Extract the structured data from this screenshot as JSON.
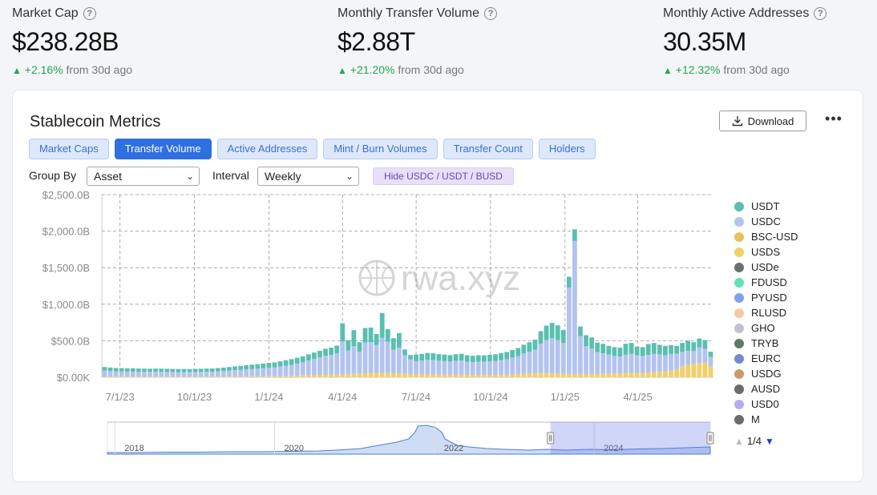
{
  "kpis": [
    {
      "title": "Market Cap",
      "value": "$238.28B",
      "change": "+2.16%",
      "suffix": "from 30d ago"
    },
    {
      "title": "Monthly Transfer Volume",
      "value": "$2.88T",
      "change": "+21.20%",
      "suffix": "from 30d ago"
    },
    {
      "title": "Monthly Active Addresses",
      "value": "30.35M",
      "change": "+12.32%",
      "suffix": "from 30d ago"
    }
  ],
  "card": {
    "title": "Stablecoin Metrics",
    "download_label": "Download",
    "more_label": "•••",
    "tabs": [
      "Market Caps",
      "Transfer Volume",
      "Active Addresses",
      "Mint / Burn Volumes",
      "Transfer Count",
      "Holders"
    ],
    "active_tab": "Transfer Volume",
    "group_by_label": "Group By",
    "group_by_value": "Asset",
    "interval_label": "Interval",
    "interval_value": "Weekly",
    "hide_button": "Hide USDC / USDT / BUSD",
    "pager": "1/4",
    "watermark": "rwa.xyz"
  },
  "navigator": {
    "year_labels": [
      "2018",
      "2020",
      "2022",
      "2024"
    ]
  },
  "chart_data": {
    "type": "bar",
    "stacked": true,
    "interval": "weekly",
    "ylabel": "",
    "xlabel": "",
    "ylim": [
      0,
      2500
    ],
    "yticks": [
      "$0.00K",
      "$500.0B",
      "$1,000.0B",
      "$1,500.0B",
      "$2,000.0B",
      "$2,500.0B"
    ],
    "xticks": [
      "7/1/23",
      "10/1/23",
      "1/1/24",
      "4/1/24",
      "7/1/24",
      "10/1/24",
      "1/1/25",
      "4/1/25"
    ],
    "grid": true,
    "legend_position": "right",
    "legend": [
      {
        "name": "USDT",
        "color": "#5bbfb0"
      },
      {
        "name": "USDC",
        "color": "#b3c3f1"
      },
      {
        "name": "BSC-USD",
        "color": "#e8c060"
      },
      {
        "name": "USDS",
        "color": "#f2cf6a"
      },
      {
        "name": "USDe",
        "color": "#6f6f6f"
      },
      {
        "name": "FDUSD",
        "color": "#66e0b3"
      },
      {
        "name": "PYUSD",
        "color": "#7f9ff0"
      },
      {
        "name": "RLUSD",
        "color": "#f6c9a0"
      },
      {
        "name": "GHO",
        "color": "#c2c2cc"
      },
      {
        "name": "TRYB",
        "color": "#5a7a6a"
      },
      {
        "name": "EURC",
        "color": "#6f8bd8"
      },
      {
        "name": "USDG",
        "color": "#c99a6c"
      },
      {
        "name": "AUSD",
        "color": "#6b6b6b"
      },
      {
        "name": "USD0",
        "color": "#b8aaf0"
      },
      {
        "name": "M",
        "color": "#6b6b6b"
      }
    ],
    "categories": [
      "2023-06-12",
      "2023-06-19",
      "2023-06-26",
      "2023-07-03",
      "2023-07-10",
      "2023-07-17",
      "2023-07-24",
      "2023-07-31",
      "2023-08-07",
      "2023-08-14",
      "2023-08-21",
      "2023-08-28",
      "2023-09-04",
      "2023-09-11",
      "2023-09-18",
      "2023-09-25",
      "2023-10-02",
      "2023-10-09",
      "2023-10-16",
      "2023-10-23",
      "2023-10-30",
      "2023-11-06",
      "2023-11-13",
      "2023-11-20",
      "2023-11-27",
      "2023-12-04",
      "2023-12-11",
      "2023-12-18",
      "2023-12-25",
      "2024-01-01",
      "2024-01-08",
      "2024-01-15",
      "2024-01-22",
      "2024-01-29",
      "2024-02-05",
      "2024-02-12",
      "2024-02-19",
      "2024-02-26",
      "2024-03-04",
      "2024-03-11",
      "2024-03-18",
      "2024-03-25",
      "2024-04-01",
      "2024-04-08",
      "2024-04-15",
      "2024-04-22",
      "2024-04-29",
      "2024-05-06",
      "2024-05-13",
      "2024-05-20",
      "2024-05-27",
      "2024-06-03",
      "2024-06-10",
      "2024-06-17",
      "2024-06-24",
      "2024-07-01",
      "2024-07-08",
      "2024-07-15",
      "2024-07-22",
      "2024-07-29",
      "2024-08-05",
      "2024-08-12",
      "2024-08-19",
      "2024-08-26",
      "2024-09-02",
      "2024-09-09",
      "2024-09-16",
      "2024-09-23",
      "2024-09-30",
      "2024-10-07",
      "2024-10-14",
      "2024-10-21",
      "2024-10-28",
      "2024-11-04",
      "2024-11-11",
      "2024-11-18",
      "2024-11-25",
      "2024-12-02",
      "2024-12-09",
      "2024-12-16",
      "2024-12-23",
      "2024-12-30",
      "2025-01-06",
      "2025-01-13",
      "2025-01-20",
      "2025-01-27",
      "2025-02-03",
      "2025-02-10",
      "2025-02-17",
      "2025-02-24",
      "2025-03-03",
      "2025-03-10",
      "2025-03-17",
      "2025-03-24",
      "2025-03-31",
      "2025-04-07",
      "2025-04-14",
      "2025-04-21",
      "2025-04-28",
      "2025-05-05",
      "2025-05-12",
      "2025-05-19",
      "2025-05-26",
      "2025-06-02",
      "2025-06-09",
      "2025-06-16",
      "2025-06-23",
      "2025-06-30"
    ],
    "series": [
      {
        "name": "USDS",
        "values": [
          10,
          10,
          10,
          10,
          10,
          10,
          10,
          10,
          10,
          10,
          10,
          10,
          10,
          10,
          10,
          10,
          10,
          10,
          10,
          10,
          10,
          10,
          10,
          12,
          12,
          12,
          12,
          12,
          12,
          14,
          14,
          16,
          18,
          20,
          22,
          25,
          28,
          30,
          32,
          35,
          36,
          38,
          40,
          45,
          45,
          50,
          55,
          60,
          62,
          60,
          58,
          55,
          55,
          50,
          45,
          40,
          40,
          38,
          38,
          36,
          36,
          35,
          35,
          34,
          34,
          33,
          33,
          32,
          32,
          33,
          34,
          35,
          38,
          40,
          45,
          50,
          55,
          60,
          58,
          55,
          50,
          48,
          45,
          45,
          45,
          45,
          45,
          45,
          48,
          50,
          52,
          55,
          58,
          60,
          60,
          62,
          65,
          70,
          75,
          80,
          90,
          110,
          150,
          170,
          180,
          190,
          200,
          150
        ]
      },
      {
        "name": "USDC",
        "values": [
          80,
          75,
          72,
          70,
          68,
          68,
          66,
          65,
          65,
          66,
          65,
          64,
          63,
          62,
          62,
          62,
          63,
          64,
          66,
          66,
          70,
          74,
          80,
          85,
          90,
          95,
          100,
          105,
          110,
          115,
          120,
          130,
          140,
          150,
          165,
          180,
          200,
          220,
          240,
          260,
          270,
          290,
          450,
          320,
          380,
          300,
          420,
          420,
          380,
          480,
          430,
          320,
          350,
          250,
          200,
          180,
          190,
          200,
          195,
          190,
          185,
          180,
          190,
          195,
          180,
          175,
          180,
          180,
          185,
          190,
          200,
          210,
          230,
          250,
          280,
          300,
          320,
          400,
          450,
          480,
          460,
          420,
          1180,
          1820,
          520,
          380,
          350,
          300,
          280,
          260,
          240,
          230,
          250,
          260,
          240,
          230,
          240,
          250,
          240,
          220,
          230,
          210,
          200,
          190,
          180,
          220,
          190,
          130
        ]
      },
      {
        "name": "USDT",
        "values": [
          50,
          48,
          45,
          45,
          44,
          44,
          43,
          43,
          42,
          43,
          42,
          42,
          41,
          41,
          41,
          40,
          41,
          42,
          43,
          44,
          46,
          48,
          50,
          52,
          55,
          58,
          60,
          62,
          65,
          68,
          70,
          72,
          75,
          78,
          80,
          82,
          85,
          88,
          90,
          95,
          100,
          105,
          250,
          140,
          220,
          130,
          200,
          200,
          150,
          340,
          170,
          160,
          200,
          80,
          60,
          90,
          90,
          95,
          95,
          90,
          90,
          88,
          90,
          92,
          88,
          86,
          88,
          88,
          90,
          92,
          95,
          100,
          105,
          110,
          120,
          130,
          140,
          170,
          200,
          210,
          200,
          180,
          150,
          160,
          130,
          150,
          150,
          130,
          130,
          120,
          120,
          120,
          150,
          150,
          120,
          120,
          150,
          150,
          130,
          130,
          120,
          110,
          120,
          140,
          120,
          120,
          120,
          70
        ]
      }
    ],
    "navigator_x_range": [
      "2017",
      "2025-07"
    ],
    "navigator_selection": [
      "2023-06",
      "2025-07"
    ]
  }
}
